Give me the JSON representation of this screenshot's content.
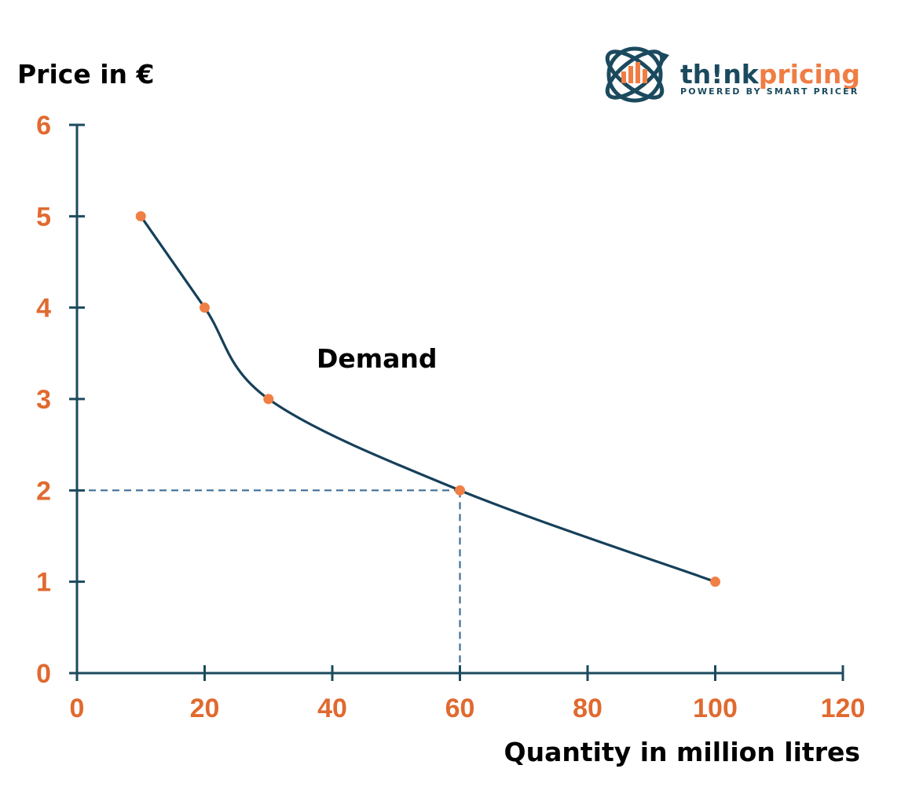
{
  "colors": {
    "axis": "#1b4a5e",
    "curve": "#16405a",
    "points": "#f07f45",
    "tick_labels": "#e06a2f",
    "guide": "#3e6f98",
    "logo_teal": "#1b4a5e",
    "logo_orange": "#ef7d44"
  },
  "logo": {
    "word_prefix": "th!nk",
    "word_suffix": "pricing",
    "tagline": "POWERED BY SMART PRICER",
    "icon": "globe-bar-chart-logo-icon"
  },
  "chart_data": {
    "type": "line",
    "xlabel": "Quantity in million litres",
    "ylabel": "Price in €",
    "xlim": [
      0,
      120
    ],
    "ylim": [
      0,
      6
    ],
    "xticks": [
      0,
      20,
      40,
      60,
      80,
      100,
      120
    ],
    "yticks": [
      0,
      1,
      2,
      3,
      4,
      5,
      6
    ],
    "grid": false,
    "series": [
      {
        "name": "Demand",
        "x": [
          10,
          20,
          30,
          60,
          100
        ],
        "y": [
          5,
          4,
          3,
          2,
          1
        ]
      }
    ],
    "annotations": [
      {
        "type": "guide-lines",
        "x": 60,
        "y": 2
      }
    ]
  }
}
